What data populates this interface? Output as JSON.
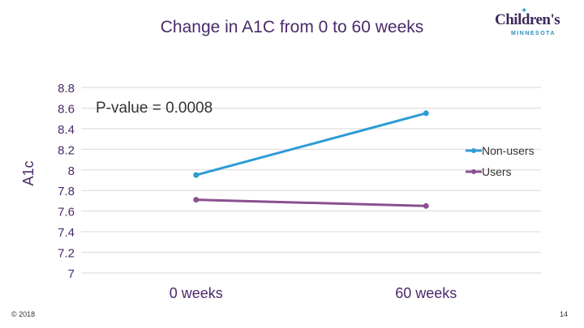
{
  "header": {
    "title": "Change in A1C from 0 to 60 weeks",
    "logo_text": "Children's",
    "logo_subtext": "MINNESOTA"
  },
  "annotation": "P-value = 0.0008",
  "footer": {
    "copyright": "© 2018",
    "page_number": "14"
  },
  "colors": {
    "title": "#4a2a6a",
    "non_users": "#2e9bd6",
    "users": "#8b4f8f",
    "grid": "#d9d9d9",
    "axis_text": "#4a2a6a"
  },
  "chart_data": {
    "type": "line",
    "title": "Change in A1C from 0 to 60 weeks",
    "xlabel": "",
    "ylabel": "A1c",
    "categories": [
      "0 weeks",
      "60 weeks"
    ],
    "ylim": [
      7,
      8.8
    ],
    "yticks": [
      "8.8",
      "8.6",
      "8.4",
      "8.2",
      "8",
      "7.8",
      "7.6",
      "7.4",
      "7.2",
      "7"
    ],
    "grid": true,
    "legend_position": "right",
    "series": [
      {
        "name": "Non-users",
        "values": [
          7.95,
          8.55
        ],
        "color": "#2e9bd6"
      },
      {
        "name": "Users",
        "values": [
          7.71,
          7.65
        ],
        "color": "#8b4f8f"
      }
    ]
  }
}
